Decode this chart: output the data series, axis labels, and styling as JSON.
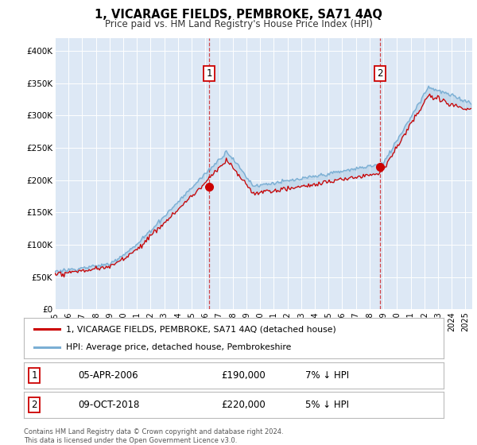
{
  "title": "1, VICARAGE FIELDS, PEMBROKE, SA71 4AQ",
  "subtitle": "Price paid vs. HM Land Registry's House Price Index (HPI)",
  "legend_line1": "1, VICARAGE FIELDS, PEMBROKE, SA71 4AQ (detached house)",
  "legend_line2": "HPI: Average price, detached house, Pembrokeshire",
  "footnote": "Contains HM Land Registry data © Crown copyright and database right 2024.\nThis data is licensed under the Open Government Licence v3.0.",
  "annotation1": {
    "label": "1",
    "date_str": "05-APR-2006",
    "price_str": "£190,000",
    "hpi_str": "7% ↓ HPI",
    "x_year": 2006.27,
    "y": 190000
  },
  "annotation2": {
    "label": "2",
    "date_str": "09-OCT-2018",
    "price_str": "£220,000",
    "hpi_str": "5% ↓ HPI",
    "x_year": 2018.77,
    "y": 220000
  },
  "background_color": "#ffffff",
  "plot_bg_color": "#dde8f5",
  "hpi_color": "#7bafd4",
  "sale_color": "#cc0000",
  "ylim": [
    0,
    420000
  ],
  "yticks": [
    0,
    50000,
    100000,
    150000,
    200000,
    250000,
    300000,
    350000,
    400000
  ],
  "ytick_labels": [
    "£0",
    "£50K",
    "£100K",
    "£150K",
    "£200K",
    "£250K",
    "£300K",
    "£350K",
    "£400K"
  ],
  "xlim": [
    1995,
    2025.5
  ],
  "xticks": [
    1995,
    1996,
    1997,
    1998,
    1999,
    2000,
    2001,
    2002,
    2003,
    2004,
    2005,
    2006,
    2007,
    2008,
    2009,
    2010,
    2011,
    2012,
    2013,
    2014,
    2015,
    2016,
    2017,
    2018,
    2019,
    2020,
    2021,
    2022,
    2023,
    2024,
    2025
  ]
}
